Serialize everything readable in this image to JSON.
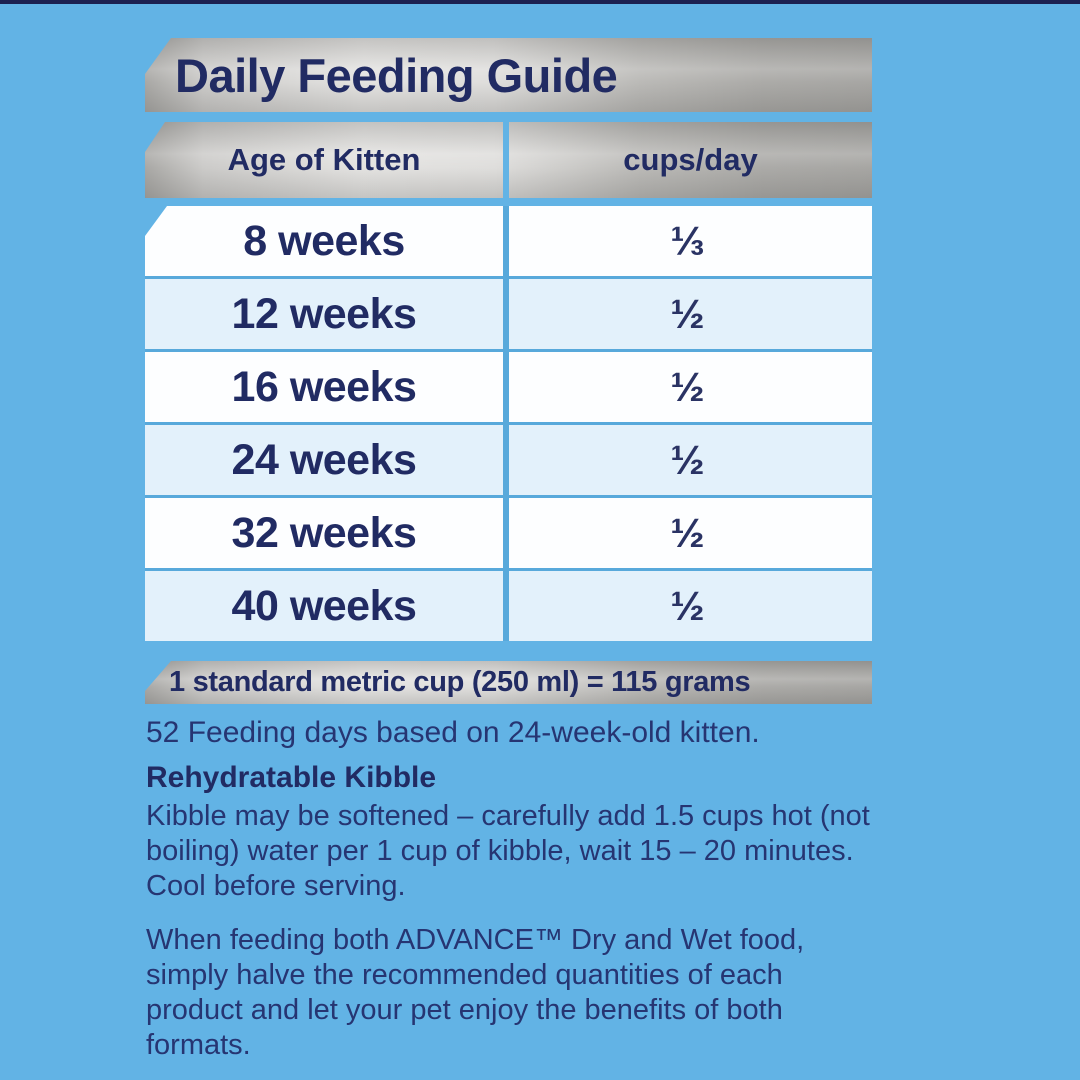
{
  "title": "Daily Feeding Guide",
  "table": {
    "headers": [
      "Age of Kitten",
      "cups/day"
    ],
    "rows": [
      {
        "age": "8 weeks",
        "cups": "⅓"
      },
      {
        "age": "12 weeks",
        "cups": "½"
      },
      {
        "age": "16 weeks",
        "cups": "½"
      },
      {
        "age": "24 weeks",
        "cups": "½"
      },
      {
        "age": "32 weeks",
        "cups": "½"
      },
      {
        "age": "40 weeks",
        "cups": "½"
      }
    ]
  },
  "note_bar": "1 standard metric cup (250 ml) = 115 grams",
  "feeding_days_note": "52 Feeding days based on 24-week-old kitten.",
  "rehydratable": {
    "heading": "Rehydratable Kibble",
    "body": "Kibble may be softened – carefully add 1.5 cups hot (not\nboiling) water per 1 cup of kibble, wait 15 – 20 minutes.\nCool before serving."
  },
  "combined_feeding_note": "When feeding both ADVANCE™ Dry and Wet food,\nsimply halve the recommended quantities of each\nproduct and let your pet enjoy the benefits of both\nformats.",
  "colors": {
    "background_blue": "#62b3e5",
    "top_strip_navy": "#1c2150",
    "navy_text": "#212b63",
    "body_text_navy": "#263572",
    "row_pale_blue": "#e3f1fb",
    "row_white": "#fdfeff",
    "grid_line_blue": "#58a9db",
    "silver_light": "#e2e1df",
    "silver_dark": "#a2a19e"
  }
}
